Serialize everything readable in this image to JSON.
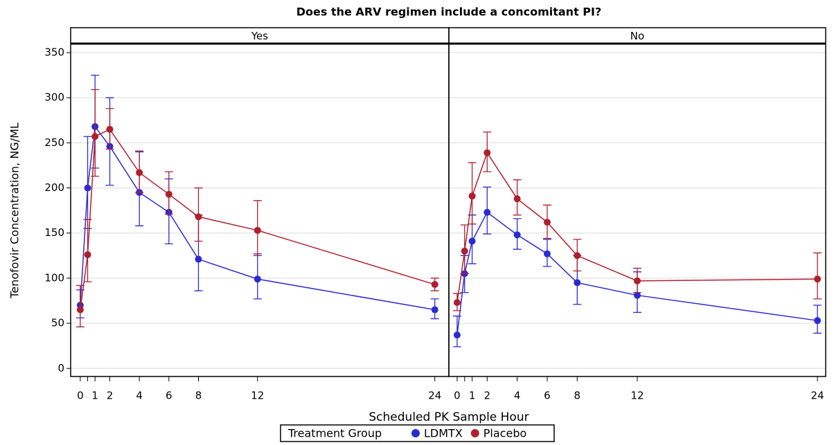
{
  "title": "Does the ARV regimen include a concomitant PI?",
  "x_label": "Scheduled PK Sample Hour",
  "y_label": "Tenofovir Concentration, NG/ML",
  "legend_title": "Treatment Group",
  "chart_data": [
    {
      "type": "line",
      "panel": "Yes",
      "xlim": [
        -0.65,
        24.95
      ],
      "xticks": [
        0,
        1,
        2,
        4,
        6,
        8,
        12,
        24
      ],
      "minor_xticks": [
        0.5
      ],
      "ylim": [
        -9,
        360
      ],
      "yticks": [
        0,
        50,
        100,
        150,
        200,
        250,
        300,
        350
      ],
      "grid": true,
      "x": [
        0,
        0.5,
        1,
        2,
        4,
        6,
        8,
        12,
        24
      ],
      "series": [
        {
          "name": "LDMTX",
          "color": "#2b2bd4",
          "values": [
            70,
            200,
            268,
            246,
            195,
            173,
            121,
            99,
            65
          ],
          "lower": [
            56,
            155,
            222,
            203,
            158,
            138,
            86,
            77,
            55
          ],
          "upper": [
            87,
            257,
            325,
            300,
            240,
            210,
            170,
            127,
            77
          ]
        },
        {
          "name": "Placebo",
          "color": "#b01f2e",
          "values": [
            65,
            126,
            257,
            265,
            217,
            193,
            168,
            153,
            93
          ],
          "lower": [
            46,
            96,
            213,
            243,
            195,
            171,
            141,
            125,
            86
          ],
          "upper": [
            92,
            165,
            309,
            288,
            241,
            218,
            200,
            186,
            100
          ]
        }
      ]
    },
    {
      "type": "line",
      "panel": "No",
      "xlim": [
        -0.55,
        24.55
      ],
      "xticks": [
        0,
        1,
        2,
        4,
        6,
        8,
        12,
        24
      ],
      "minor_xticks": [
        0.5
      ],
      "ylim": [
        -9,
        360
      ],
      "yticks": [
        0,
        50,
        100,
        150,
        200,
        250,
        300,
        350
      ],
      "grid": true,
      "x": [
        0,
        0.5,
        1,
        2,
        4,
        6,
        8,
        12,
        24
      ],
      "series": [
        {
          "name": "LDMTX",
          "color": "#2b2bd4",
          "values": [
            37,
            105,
            141,
            173,
            148,
            127,
            95,
            81,
            53
          ],
          "lower": [
            24,
            84,
            116,
            149,
            132,
            113,
            71,
            62,
            39
          ],
          "upper": [
            58,
            125,
            170,
            201,
            166,
            143,
            125,
            107,
            70
          ]
        },
        {
          "name": "Placebo",
          "color": "#b01f2e",
          "values": [
            73,
            130,
            191,
            239,
            188,
            162,
            125,
            97,
            99
          ],
          "lower": [
            64,
            105,
            160,
            218,
            170,
            144,
            108,
            84,
            77
          ],
          "upper": [
            83,
            159,
            228,
            262,
            209,
            181,
            143,
            111,
            128
          ]
        }
      ]
    }
  ]
}
